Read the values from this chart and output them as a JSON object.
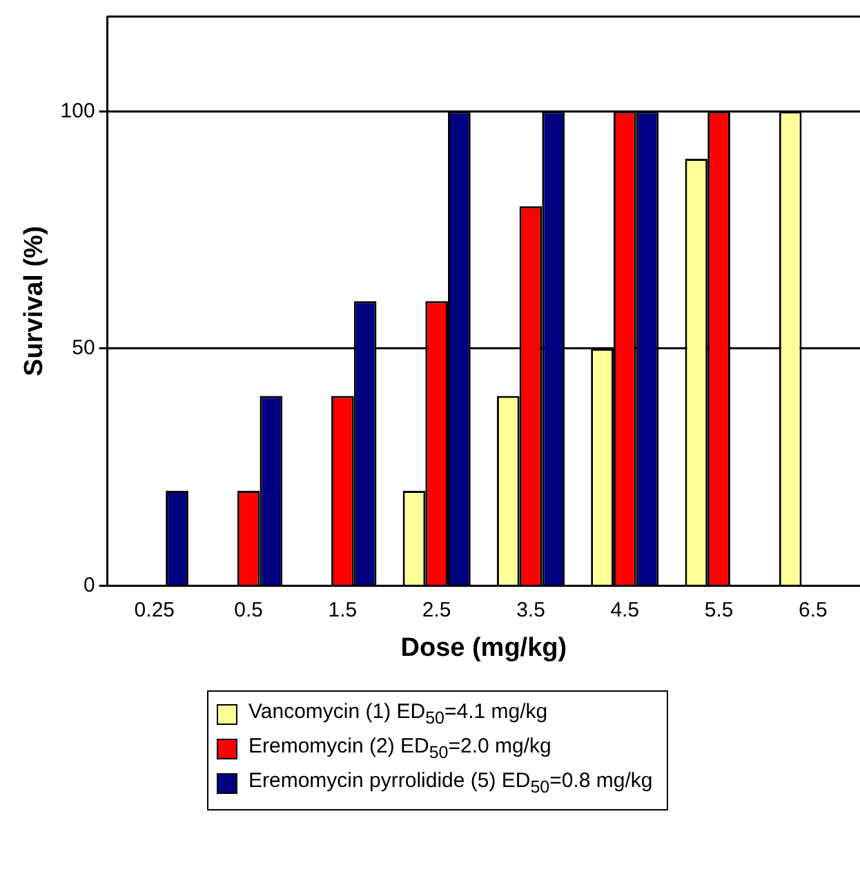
{
  "chart_data": {
    "type": "bar",
    "xlabel": "Dose (mg/kg)",
    "ylabel": "Survival (%)",
    "categories": [
      "0.25",
      "0.5",
      "1.5",
      "2.5",
      "3.5",
      "4.5",
      "5.5",
      "6.5"
    ],
    "series": [
      {
        "name": "Vancomycin (1) ED$_{50}$=4.1 mg/kg",
        "color": "#ffff99",
        "values": [
          0,
          0,
          0,
          20,
          40,
          50,
          90,
          100
        ]
      },
      {
        "name": "Eremomycin (2) ED$_{50}$=2.0 mg/kg",
        "color": "#ff0000",
        "values": [
          0,
          20,
          40,
          60,
          80,
          100,
          100,
          null
        ]
      },
      {
        "name": "Eremomycin pyrrolidide (5) ED$_{50}$=0.8 mg/kg",
        "color": "#000080",
        "values": [
          20,
          40,
          60,
          100,
          100,
          100,
          null,
          null
        ]
      }
    ],
    "ylim": [
      0,
      120
    ],
    "yticks": [
      0,
      50,
      100
    ],
    "grid": "y",
    "legend": "bottom"
  }
}
